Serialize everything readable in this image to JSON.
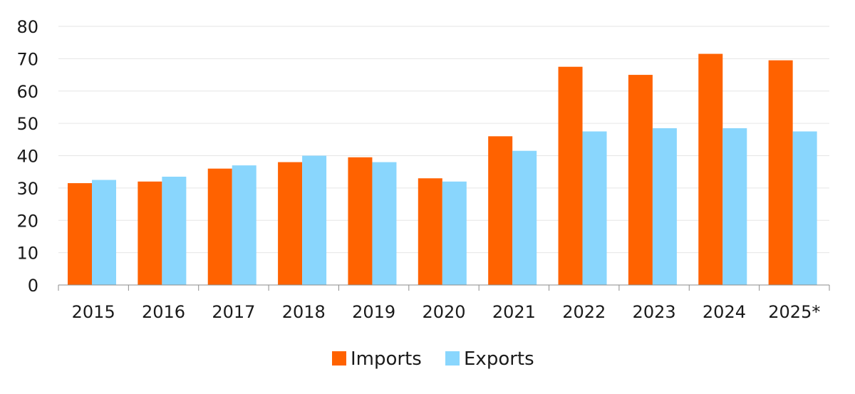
{
  "chart_data": {
    "type": "bar",
    "title": "",
    "xlabel": "",
    "ylabel": "",
    "categories": [
      "2015",
      "2016",
      "2017",
      "2018",
      "2019",
      "2020",
      "2021",
      "2022",
      "2023",
      "2024",
      "2025*"
    ],
    "series": [
      {
        "name": "Imports",
        "color": "#FF6200",
        "values": [
          31.5,
          32,
          36,
          38,
          39.5,
          33,
          46,
          67.5,
          65,
          71.5,
          69.5
        ]
      },
      {
        "name": "Exports",
        "color": "#89D6FD",
        "values": [
          32.5,
          33.5,
          37,
          40,
          38,
          32,
          41.5,
          47.5,
          48.5,
          48.5,
          47.5
        ]
      }
    ],
    "ylim": [
      0,
      80
    ],
    "yticks": [
      0,
      10,
      20,
      30,
      40,
      50,
      60,
      70,
      80
    ],
    "grid": true,
    "gridline_color": "#e6e6e6",
    "legend_placement": "bottom-center"
  }
}
